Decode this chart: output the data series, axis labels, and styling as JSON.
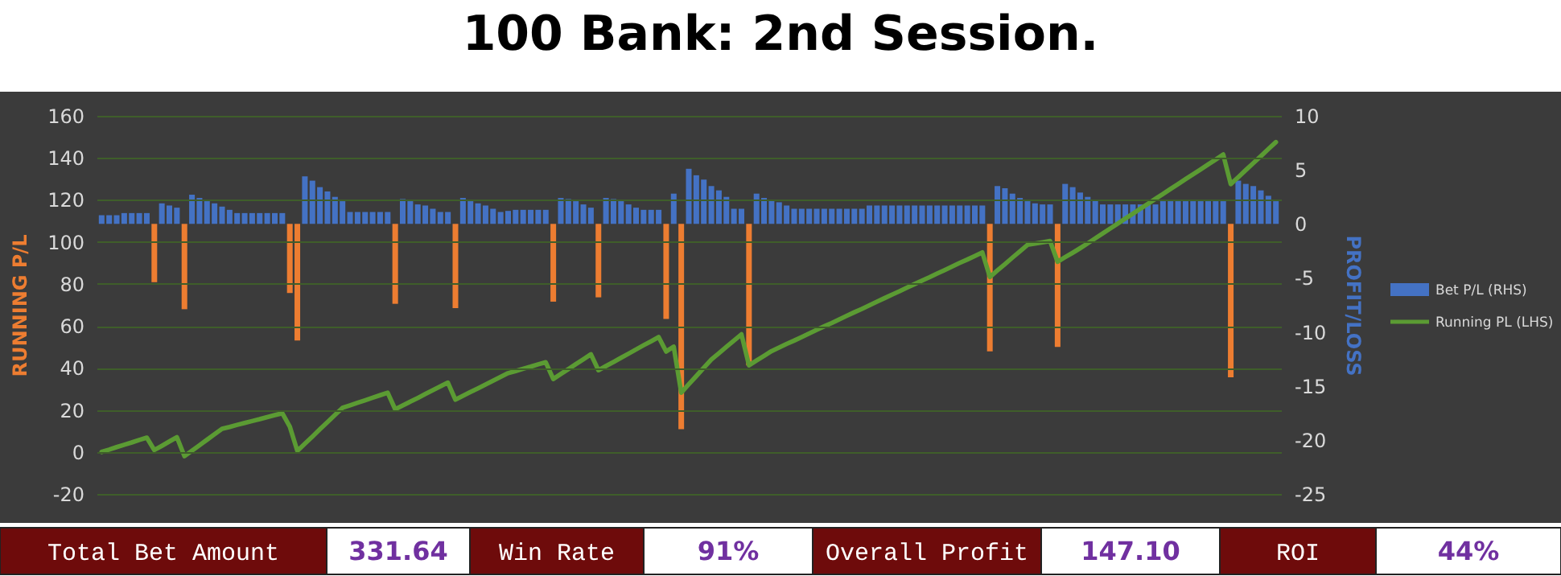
{
  "chart_data": {
    "type": "bar",
    "title": "100 Bank: 2nd Session.",
    "ylabel": "RUNNING P/L",
    "y2label": "PROFIT/LOSS",
    "categories": [
      null,
      null,
      null,
      null,
      null,
      null,
      null,
      null,
      null,
      null,
      null,
      null,
      null,
      null,
      null,
      null,
      null,
      null,
      null,
      null,
      null,
      null,
      null,
      null,
      null,
      null,
      null,
      null,
      null,
      null,
      null,
      null,
      null,
      null,
      null,
      null,
      null,
      null,
      null,
      null,
      null,
      null,
      null,
      null,
      null,
      null,
      null,
      null,
      null,
      null,
      null,
      null,
      null,
      null,
      null,
      null,
      null,
      null,
      null,
      null,
      null,
      null,
      null,
      null,
      null,
      null,
      null,
      null,
      null,
      null,
      null,
      null,
      null,
      null,
      null,
      null,
      null,
      null,
      null,
      null,
      null,
      null,
      null,
      null,
      null,
      null,
      null,
      null,
      null,
      null,
      null,
      null,
      null,
      null,
      null,
      null,
      null,
      null,
      null,
      null,
      null,
      null,
      null,
      null,
      null,
      null,
      null,
      null,
      null,
      null,
      null,
      null,
      null,
      null,
      null,
      null,
      null,
      null,
      null,
      null,
      null,
      null,
      null,
      null,
      null,
      null,
      null,
      null,
      null,
      null,
      null,
      null,
      null,
      null,
      null,
      null,
      null,
      null,
      null,
      null,
      null,
      null,
      null,
      null,
      null,
      null,
      null,
      null,
      null,
      null,
      null,
      null,
      null,
      null,
      null,
      null,
      null
    ],
    "tick_labels": "y",
    "ylim": [
      -20,
      160
    ],
    "yticks": [
      -20,
      0,
      20,
      40,
      60,
      80,
      100,
      120,
      140,
      160
    ],
    "y2lim": [
      -25,
      10
    ],
    "y2ticks": [
      -25,
      -20,
      -15,
      -10,
      -5,
      0,
      5,
      10
    ],
    "grid": "y",
    "legend": "right",
    "series": [
      {
        "name": "Bet P/L (RHS)",
        "axis": "y2",
        "color": "#4472c4",
        "values": [
          0.8,
          0.8,
          0.8,
          1.0,
          1.0,
          1.0,
          1.0,
          -5.4,
          1.9,
          1.7,
          1.5,
          -7.9,
          2.7,
          2.4,
          2.1,
          1.9,
          1.6,
          1.3,
          1.0,
          1.0,
          1.0,
          1.0,
          1.0,
          1.0,
          1.0,
          -6.4,
          -10.8,
          4.4,
          4.0,
          3.4,
          3.0,
          2.5,
          2.1,
          1.1,
          1.1,
          1.1,
          1.1,
          1.1,
          1.1,
          -7.4,
          2.3,
          2.1,
          1.8,
          1.7,
          1.4,
          1.1,
          1.1,
          -7.8,
          2.4,
          2.1,
          1.9,
          1.7,
          1.4,
          1.1,
          1.2,
          1.3,
          1.3,
          1.3,
          1.3,
          1.3,
          -7.2,
          2.4,
          2.3,
          2.1,
          1.8,
          1.5,
          -6.8,
          2.4,
          2.3,
          2.1,
          1.8,
          1.5,
          1.3,
          1.3,
          1.3,
          -8.8,
          2.8,
          -19.0,
          5.1,
          4.5,
          4.1,
          3.5,
          3.1,
          2.5,
          1.4,
          1.4,
          -13.1,
          2.8,
          2.4,
          2.2,
          2.0,
          1.7,
          1.4,
          1.4,
          1.4,
          1.4,
          1.4,
          1.4,
          1.4,
          1.4,
          1.4,
          1.4,
          1.7,
          1.7,
          1.7,
          1.7,
          1.7,
          1.7,
          1.7,
          1.7,
          1.7,
          1.7,
          1.7,
          1.7,
          1.7,
          1.7,
          1.7,
          1.7,
          -11.8,
          3.5,
          3.3,
          2.8,
          2.4,
          2.1,
          1.9,
          1.8,
          1.8,
          -11.4,
          3.7,
          3.4,
          2.9,
          2.5,
          2.2,
          1.8,
          1.8,
          1.8,
          1.8,
          1.8,
          1.8,
          1.8,
          1.8,
          2.1,
          2.1,
          2.1,
          2.1,
          2.1,
          2.1,
          2.1,
          2.1,
          2.1,
          -14.2,
          4.0,
          3.7,
          3.5,
          3.1,
          2.6,
          2.1
        ],
        "colors": [
          "#4472c4",
          "#4472c4",
          "#4472c4",
          "#4472c4",
          "#4472c4",
          "#4472c4",
          "#4472c4",
          "#ed7d31",
          "#4472c4",
          "#4472c4",
          "#4472c4",
          "#ed7d31",
          "#4472c4",
          "#4472c4",
          "#4472c4",
          "#4472c4",
          "#4472c4",
          "#4472c4",
          "#4472c4",
          "#4472c4",
          "#4472c4",
          "#4472c4",
          "#4472c4",
          "#4472c4",
          "#4472c4",
          "#ed7d31",
          "#ed7d31",
          "#4472c4",
          "#4472c4",
          "#4472c4",
          "#4472c4",
          "#4472c4",
          "#4472c4",
          "#4472c4",
          "#4472c4",
          "#4472c4",
          "#4472c4",
          "#4472c4",
          "#4472c4",
          "#ed7d31",
          "#4472c4",
          "#4472c4",
          "#4472c4",
          "#4472c4",
          "#4472c4",
          "#4472c4",
          "#4472c4",
          "#ed7d31",
          "#4472c4",
          "#4472c4",
          "#4472c4",
          "#4472c4",
          "#4472c4",
          "#4472c4",
          "#4472c4",
          "#4472c4",
          "#4472c4",
          "#4472c4",
          "#4472c4",
          "#4472c4",
          "#ed7d31",
          "#4472c4",
          "#4472c4",
          "#4472c4",
          "#4472c4",
          "#4472c4",
          "#ed7d31",
          "#4472c4",
          "#4472c4",
          "#4472c4",
          "#4472c4",
          "#4472c4",
          "#4472c4",
          "#4472c4",
          "#4472c4",
          "#ed7d31",
          "#4472c4",
          "#ed7d31",
          "#4472c4",
          "#4472c4",
          "#4472c4",
          "#4472c4",
          "#4472c4",
          "#4472c4",
          "#4472c4",
          "#4472c4",
          "#ed7d31",
          "#4472c4",
          "#4472c4",
          "#4472c4",
          "#4472c4",
          "#4472c4",
          "#4472c4",
          "#4472c4",
          "#4472c4",
          "#4472c4",
          "#4472c4",
          "#4472c4",
          "#4472c4",
          "#4472c4",
          "#4472c4",
          "#4472c4",
          "#4472c4",
          "#4472c4",
          "#4472c4",
          "#4472c4",
          "#4472c4",
          "#4472c4",
          "#4472c4",
          "#4472c4",
          "#4472c4",
          "#4472c4",
          "#4472c4",
          "#4472c4",
          "#4472c4",
          "#4472c4",
          "#4472c4",
          "#4472c4",
          "#ed7d31",
          "#4472c4",
          "#4472c4",
          "#4472c4",
          "#4472c4",
          "#4472c4",
          "#4472c4",
          "#4472c4",
          "#4472c4",
          "#ed7d31",
          "#4472c4",
          "#4472c4",
          "#4472c4",
          "#4472c4",
          "#4472c4",
          "#4472c4",
          "#4472c4",
          "#4472c4",
          "#4472c4",
          "#4472c4",
          "#4472c4",
          "#4472c4",
          "#4472c4",
          "#4472c4",
          "#4472c4",
          "#4472c4",
          "#4472c4",
          "#4472c4",
          "#4472c4",
          "#4472c4",
          "#4472c4",
          "#4472c4",
          "#ed7d31",
          "#4472c4",
          "#4472c4",
          "#4472c4",
          "#4472c4",
          "#4472c4",
          "#4472c4"
        ]
      },
      {
        "name": "Running PL (LHS)",
        "type": "line",
        "color": "#5b9b33",
        "values": [
          0,
          1.1,
          2.3,
          3.4,
          4.5,
          5.7,
          6.8,
          0.9,
          2.9,
          5.0,
          7.0,
          -2,
          0.6,
          3.2,
          5.8,
          8.4,
          11,
          11.9,
          12.9,
          13.8,
          14.7,
          15.6,
          16.6,
          17.5,
          18.4,
          12.0,
          0.5,
          3.9,
          7.3,
          10.8,
          14.2,
          17.6,
          21,
          22.2,
          23.4,
          24.6,
          25.8,
          27.0,
          28.2,
          20.3,
          22.1,
          23.9,
          25.7,
          27.6,
          29.4,
          31.2,
          33,
          24.9,
          26.7,
          28.5,
          30.3,
          32.1,
          33.9,
          35.7,
          37.5,
          38.5,
          39.6,
          40.6,
          41.7,
          42.7,
          34.7,
          37.1,
          39.4,
          41.8,
          44.1,
          46.5,
          38.9,
          40.9,
          42.8,
          44.8,
          46.8,
          48.8,
          50.8,
          52.7,
          54.7,
          47.8,
          50.1,
          28.2,
          32.2,
          36.1,
          40.1,
          44,
          47,
          50,
          53,
          56,
          41.2,
          43.5,
          45.7,
          48,
          49.7,
          51.4,
          53.0,
          54.7,
          56.4,
          58.1,
          59.8,
          61.4,
          63.1,
          64.8,
          66.5,
          68.1,
          69.8,
          71.5,
          73.2,
          74.9,
          76.5,
          78.2,
          79.9,
          81.6,
          83.2,
          84.9,
          86.6,
          88.3,
          90.0,
          91.6,
          93.3,
          95,
          83.3,
          86.4,
          89.4,
          92.5,
          95.5,
          98.6,
          99.2,
          99.8,
          100.4,
          90.5,
          92.7,
          94.8,
          97,
          99.3,
          101.7,
          104.0,
          106.4,
          108.7,
          111.1,
          113.4,
          115.8,
          118.1,
          120.5,
          122.8,
          125.2,
          127.5,
          129.9,
          132.2,
          134.5,
          136.9,
          139.2,
          141.6,
          127.5,
          130.8,
          134.2,
          137.5,
          140.8,
          144.2,
          147.5
        ]
      }
    ],
    "annotations": [
      "Total Bet Amount",
      "331.64",
      "Win Rate",
      "91%",
      "Overall Profit",
      "147.10",
      "ROI",
      "44%"
    ]
  }
}
